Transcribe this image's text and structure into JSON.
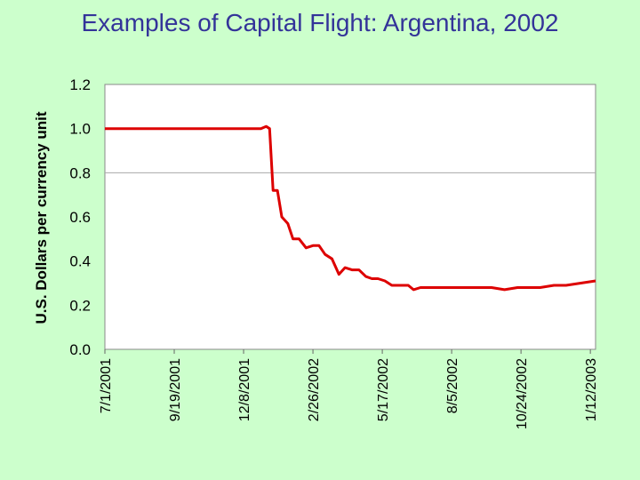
{
  "chart_data": {
    "type": "line",
    "title": "Examples of Capital Flight:  Argentina, 2002",
    "ylabel": "U.S. Dollars per currency unit",
    "xlabel": "",
    "ylim": [
      0.0,
      1.2
    ],
    "yticks": [
      "0.0",
      "0.2",
      "0.4",
      "0.6",
      "0.8",
      "1.0",
      "1.2"
    ],
    "xticks": [
      "7/1/2001",
      "9/19/2001",
      "12/8/2001",
      "2/26/2002",
      "5/17/2002",
      "8/5/2002",
      "10/24/2002",
      "1/12/2003"
    ],
    "xlim": [
      "7/1/2001",
      "1/18/2003"
    ],
    "grid": "horizontal at 0.8",
    "series": [
      {
        "color": "#dd0000",
        "x": [
          "7/1/2001",
          "8/1/2001",
          "9/1/2001",
          "10/1/2001",
          "11/1/2001",
          "12/1/2001",
          "12/28/2001",
          "1/3/2002",
          "1/7/2002",
          "1/11/2002",
          "1/16/2002",
          "1/21/2002",
          "1/28/2002",
          "2/3/2002",
          "2/10/2002",
          "2/18/2002",
          "2/26/2002",
          "3/5/2002",
          "3/12/2002",
          "3/20/2002",
          "3/28/2002",
          "4/4/2002",
          "4/12/2002",
          "4/20/2002",
          "4/28/2002",
          "5/5/2002",
          "5/12/2002",
          "5/20/2002",
          "5/28/2002",
          "6/8/2002",
          "6/16/2002",
          "6/22/2002",
          "6/30/2002",
          "7/8/2002",
          "7/18/2002",
          "7/28/2002",
          "8/8/2002",
          "8/20/2002",
          "9/5/2002",
          "9/20/2002",
          "10/5/2002",
          "10/20/2002",
          "11/1/2002",
          "11/15/2002",
          "12/1/2002",
          "12/15/2002",
          "1/1/2003",
          "1/18/2003"
        ],
        "values": [
          1.0,
          1.0,
          1.0,
          1.0,
          1.0,
          1.0,
          1.0,
          1.01,
          1.0,
          0.72,
          0.72,
          0.6,
          0.57,
          0.5,
          0.5,
          0.46,
          0.47,
          0.47,
          0.43,
          0.41,
          0.34,
          0.37,
          0.36,
          0.36,
          0.33,
          0.32,
          0.32,
          0.31,
          0.29,
          0.29,
          0.29,
          0.27,
          0.28,
          0.28,
          0.28,
          0.28,
          0.28,
          0.28,
          0.28,
          0.28,
          0.27,
          0.28,
          0.28,
          0.28,
          0.29,
          0.29,
          0.3,
          0.31
        ]
      }
    ]
  }
}
